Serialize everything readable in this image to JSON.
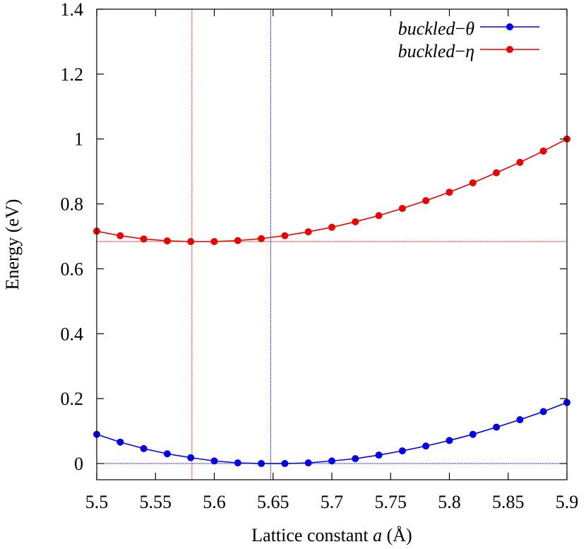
{
  "chart_data": {
    "type": "line",
    "xlabel": "Lattice constant",
    "xlabel_var": "a",
    "xlabel_unit": "(Å)",
    "ylabel": "Energy (eV)",
    "xlim": [
      5.5,
      5.9
    ],
    "ylim": [
      -0.05,
      1.4
    ],
    "xticks": [
      "5.5",
      "5.55",
      "5.6",
      "5.65",
      "5.7",
      "5.75",
      "5.8",
      "5.85",
      "5.9"
    ],
    "yticks": [
      "0",
      "0.2",
      "0.4",
      "0.6",
      "0.8",
      "1",
      "1.2",
      "1.4"
    ],
    "legend_position": "top-right",
    "x": [
      5.5,
      5.52,
      5.54,
      5.56,
      5.58,
      5.6,
      5.62,
      5.64,
      5.66,
      5.68,
      5.7,
      5.72,
      5.74,
      5.76,
      5.78,
      5.8,
      5.82,
      5.84,
      5.86,
      5.88,
      5.9
    ],
    "series": [
      {
        "name": "buckled−θ",
        "name_base": "buckled",
        "name_symbol": "θ",
        "color": "#0000ee",
        "values": [
          0.09,
          0.066,
          0.046,
          0.03,
          0.018,
          0.008,
          0.002,
          0.0,
          0.0,
          0.002,
          0.008,
          0.015,
          0.026,
          0.039,
          0.054,
          0.071,
          0.09,
          0.112,
          0.135,
          0.16,
          0.188
        ],
        "minimum_x": 5.648,
        "minimum_y": 0.0
      },
      {
        "name": "buckled−η",
        "name_base": "buckled",
        "name_symbol": "η",
        "color": "#ee0000",
        "values": [
          0.716,
          0.702,
          0.692,
          0.686,
          0.684,
          0.684,
          0.687,
          0.693,
          0.702,
          0.714,
          0.728,
          0.745,
          0.764,
          0.786,
          0.81,
          0.836,
          0.865,
          0.896,
          0.928,
          0.963,
          1.0
        ],
        "minimum_x": 5.581,
        "minimum_y": 0.684
      }
    ]
  }
}
